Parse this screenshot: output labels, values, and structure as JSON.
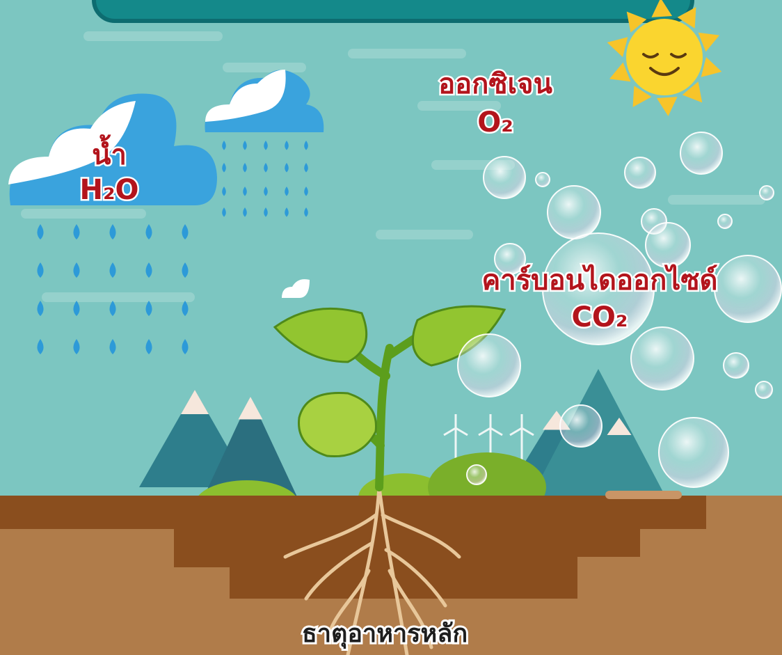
{
  "labels": {
    "water": {
      "name": "น้ำ",
      "formula": "H₂O"
    },
    "oxygen": {
      "name": "ออกซิเจน",
      "formula": "O₂"
    },
    "carbon_dioxide": {
      "name": "คาร์บอนไดออกไซด์",
      "formula": "CO₂"
    },
    "nutrients": {
      "name": "ธาตุอาหารหลัก"
    }
  }
}
